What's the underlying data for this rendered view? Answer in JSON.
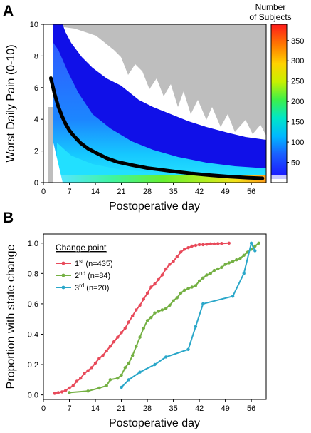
{
  "chart_data": [
    {
      "panel": "A",
      "type": "heatmap",
      "xlabel": "Postoperative day",
      "ylabel": "Worst Daily Pain (0-10)",
      "xlim": [
        0,
        60
      ],
      "ylim": [
        0,
        10
      ],
      "xticks": [
        0,
        7,
        14,
        21,
        28,
        35,
        42,
        49,
        56
      ],
      "yticks": [
        0,
        2,
        4,
        6,
        8,
        10
      ],
      "colorbar": {
        "title_line1": "Number",
        "title_line2": "of Subjects",
        "ticks": [
          50,
          100,
          150,
          200,
          250,
          300,
          350
        ],
        "range": [
          0,
          390
        ]
      },
      "no_data_color": "#bebebe",
      "mean_curve": {
        "x": [
          2,
          3,
          4,
          5,
          6,
          7,
          8,
          10,
          12,
          14,
          17,
          20,
          24,
          28,
          32,
          36,
          40,
          45,
          50,
          55,
          59
        ],
        "y": [
          6.6,
          5.6,
          4.8,
          4.2,
          3.7,
          3.3,
          3.0,
          2.5,
          2.15,
          1.9,
          1.55,
          1.3,
          1.1,
          0.92,
          0.8,
          0.68,
          0.57,
          0.47,
          0.38,
          0.31,
          0.27
        ]
      }
    },
    {
      "panel": "B",
      "type": "line",
      "xlabel": "Postoperative day",
      "ylabel": "Proportion with state change",
      "xlim": [
        0,
        60
      ],
      "ylim": [
        -0.03,
        1.06
      ],
      "xticks": [
        0,
        7,
        14,
        21,
        28,
        35,
        42,
        49,
        56
      ],
      "yticks": [
        0.0,
        0.2,
        0.4,
        0.6,
        0.8,
        1.0
      ],
      "legend": {
        "title": "Change point",
        "placement": "top-left"
      },
      "series": [
        {
          "name_ord": "1",
          "name_sup": "st",
          "name_n": "(n=435)",
          "color": "#e84a5a",
          "x": [
            3,
            4,
            5,
            6,
            7,
            8,
            9,
            10,
            11,
            12,
            13,
            14,
            15,
            16,
            17,
            18,
            19,
            20,
            21,
            22,
            23,
            24,
            25,
            26,
            27,
            28,
            29,
            30,
            31,
            32,
            33,
            34,
            35,
            36,
            37,
            38,
            39,
            40,
            41,
            42,
            43,
            44,
            45,
            46,
            47,
            48,
            50
          ],
          "y": [
            0.01,
            0.015,
            0.02,
            0.03,
            0.045,
            0.06,
            0.09,
            0.11,
            0.14,
            0.16,
            0.18,
            0.21,
            0.24,
            0.26,
            0.29,
            0.32,
            0.35,
            0.38,
            0.41,
            0.44,
            0.48,
            0.52,
            0.56,
            0.59,
            0.63,
            0.67,
            0.71,
            0.73,
            0.76,
            0.79,
            0.83,
            0.86,
            0.88,
            0.91,
            0.94,
            0.96,
            0.97,
            0.98,
            0.985,
            0.99,
            0.99,
            0.993,
            0.995,
            0.995,
            0.997,
            0.998,
            1.0
          ]
        },
        {
          "name_ord": "2",
          "name_sup": "nd",
          "name_n": "(n=84)",
          "color": "#74b043",
          "x": [
            7,
            12,
            15,
            17,
            18,
            20,
            21,
            22,
            23,
            24,
            25,
            26,
            27,
            28,
            29,
            30,
            31,
            32,
            33,
            34,
            35,
            36,
            37,
            38,
            39,
            40,
            41,
            42,
            43,
            44,
            45,
            46,
            47,
            48,
            49,
            50,
            51,
            52,
            53,
            54,
            55,
            56,
            57,
            58
          ],
          "y": [
            0.015,
            0.025,
            0.045,
            0.06,
            0.1,
            0.11,
            0.13,
            0.18,
            0.21,
            0.26,
            0.32,
            0.38,
            0.44,
            0.49,
            0.51,
            0.54,
            0.55,
            0.56,
            0.57,
            0.59,
            0.62,
            0.64,
            0.67,
            0.69,
            0.7,
            0.71,
            0.72,
            0.75,
            0.77,
            0.79,
            0.8,
            0.82,
            0.83,
            0.84,
            0.86,
            0.87,
            0.88,
            0.89,
            0.9,
            0.92,
            0.94,
            0.96,
            0.98,
            1.0
          ]
        },
        {
          "name_ord": "3",
          "name_sup": "rd",
          "name_n": "(n=20)",
          "color": "#2aa7c9",
          "x": [
            21,
            23,
            26,
            30,
            33,
            39,
            41,
            43,
            51,
            54,
            56,
            57
          ],
          "y": [
            0.05,
            0.1,
            0.15,
            0.2,
            0.25,
            0.3,
            0.45,
            0.6,
            0.65,
            0.8,
            1.0,
            0.95
          ]
        }
      ]
    }
  ]
}
